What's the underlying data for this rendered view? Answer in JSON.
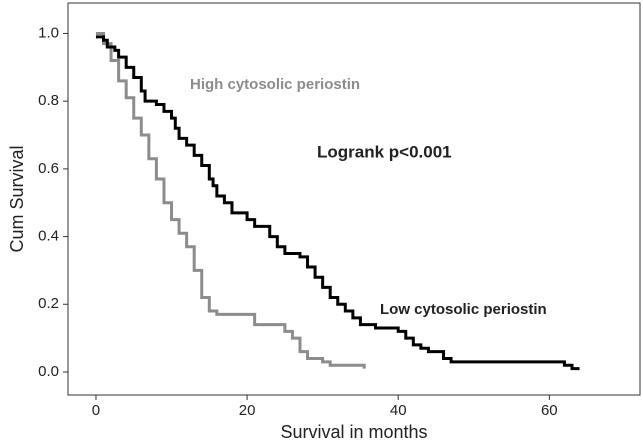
{
  "chart_data": {
    "type": "step",
    "x_label": "Survival in months",
    "y_label": "Cum Survival",
    "xlim": [
      -3.7,
      72
    ],
    "ylim": [
      -0.068,
      1.09
    ],
    "xticks": [
      0,
      20,
      40,
      60
    ],
    "yticks": [
      {
        "value": 0,
        "label": "0.0"
      },
      {
        "value": 0.2,
        "label": "0.2"
      },
      {
        "value": 0.4,
        "label": "0.4"
      },
      {
        "value": 0.6,
        "label": "0.6"
      },
      {
        "value": 0.8,
        "label": "0.8"
      },
      {
        "value": 1,
        "label": "1.0"
      }
    ],
    "annotation": "Logrank p<0.001",
    "series": [
      {
        "name": "High cytosolic periostin",
        "color": "#8c8c8c",
        "x": [
          0,
          1,
          2,
          3,
          4,
          5,
          6,
          7,
          8,
          9,
          10,
          11,
          12,
          13,
          14,
          15,
          16,
          21,
          25,
          26,
          27,
          28,
          30,
          31,
          35,
          35.5
        ],
        "values": [
          1.0,
          0.97,
          0.92,
          0.86,
          0.81,
          0.75,
          0.7,
          0.63,
          0.57,
          0.5,
          0.45,
          0.41,
          0.37,
          0.3,
          0.22,
          0.18,
          0.17,
          0.14,
          0.12,
          0.1,
          0.06,
          0.04,
          0.03,
          0.02,
          0.02,
          0.01
        ]
      },
      {
        "name": "Low cytosolic periostin",
        "color": "#000000",
        "x": [
          0,
          1,
          1.5,
          2.5,
          3,
          4,
          5,
          6,
          6.5,
          8,
          9,
          10,
          10.5,
          11,
          12,
          13,
          14,
          15,
          15.5,
          16,
          17,
          18,
          20,
          21,
          23,
          24,
          25,
          27,
          28,
          29,
          30,
          31,
          32,
          33,
          34,
          35,
          37,
          40,
          41,
          42,
          43,
          44,
          46,
          47,
          62,
          63,
          64
        ],
        "values": [
          0.99,
          0.98,
          0.96,
          0.95,
          0.93,
          0.9,
          0.87,
          0.83,
          0.8,
          0.79,
          0.77,
          0.75,
          0.72,
          0.69,
          0.67,
          0.64,
          0.61,
          0.57,
          0.55,
          0.52,
          0.5,
          0.47,
          0.45,
          0.43,
          0.4,
          0.37,
          0.35,
          0.34,
          0.31,
          0.28,
          0.25,
          0.22,
          0.2,
          0.18,
          0.16,
          0.14,
          0.13,
          0.12,
          0.1,
          0.08,
          0.07,
          0.06,
          0.04,
          0.03,
          0.02,
          0.01,
          0.01
        ]
      }
    ]
  }
}
